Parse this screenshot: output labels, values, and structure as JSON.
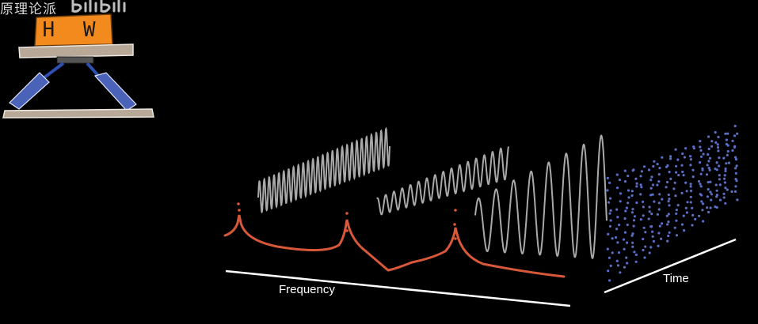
{
  "watermark": {
    "text": "原理论派"
  },
  "box": {
    "label": "H W",
    "color": "#f28a1e"
  },
  "axes": {
    "frequency_label": "Frequency",
    "time_label": "Time"
  },
  "colors": {
    "background": "#000000",
    "wave": "#a9a9a9",
    "spectrum": "#d9583a",
    "scatter": "#5a6ec4",
    "axis": "#ffffff",
    "plank": "#b8a898",
    "legs": "#4a62b8"
  }
}
